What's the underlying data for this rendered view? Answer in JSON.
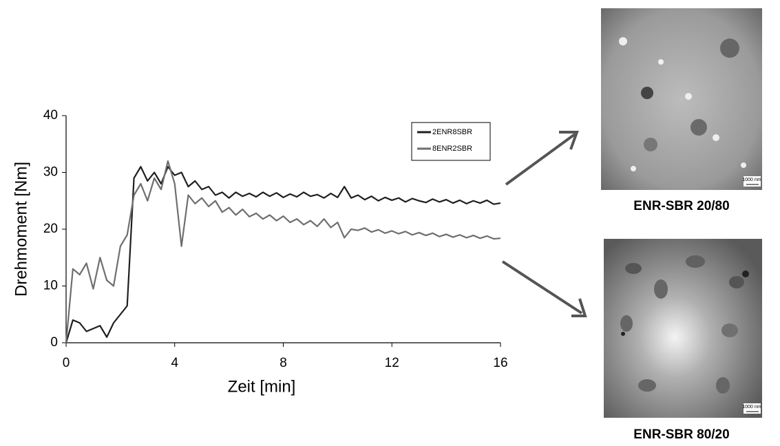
{
  "chart_data": {
    "type": "line",
    "x_label": "Zeit [min]",
    "y_label": "Drehmoment [Nm]",
    "x": [
      0,
      0.25,
      0.5,
      0.75,
      1,
      1.25,
      1.5,
      1.75,
      2,
      2.25,
      2.5,
      2.75,
      3,
      3.25,
      3.5,
      3.75,
      4,
      4.25,
      4.5,
      4.75,
      5,
      5.25,
      5.5,
      5.75,
      6,
      6.25,
      6.5,
      6.75,
      7,
      7.25,
      7.5,
      7.75,
      8,
      8.25,
      8.5,
      8.75,
      9,
      9.25,
      9.5,
      9.75,
      10,
      10.25,
      10.5,
      10.75,
      11,
      11.25,
      11.5,
      11.75,
      12,
      12.25,
      12.5,
      12.75,
      13,
      13.25,
      13.5,
      13.75,
      14,
      14.25,
      14.5,
      14.75,
      15,
      15.25,
      15.5,
      15.75,
      16
    ],
    "series": [
      {
        "name": "2ENR8SBR",
        "color": "#1e1e1e",
        "values": [
          0,
          4,
          3.5,
          2,
          2.5,
          3,
          1,
          3.5,
          5,
          6.5,
          29,
          31,
          28.5,
          30,
          28,
          31,
          29.5,
          30,
          27.5,
          28.5,
          27,
          27.5,
          26,
          26.5,
          25.5,
          26.5,
          25.8,
          26.3,
          25.7,
          26.5,
          25.8,
          26.4,
          25.6,
          26.2,
          25.7,
          26.5,
          25.8,
          26.1,
          25.5,
          26.3,
          25.6,
          27.5,
          25.5,
          26,
          25.2,
          25.8,
          25,
          25.6,
          25.1,
          25.5,
          24.8,
          25.4,
          25,
          24.7,
          25.3,
          24.8,
          25.2,
          24.6,
          25.1,
          24.5,
          25,
          24.6,
          25.1,
          24.4,
          24.6
        ]
      },
      {
        "name": "8ENR2SBR",
        "color": "#6e6e6e",
        "values": [
          0,
          13,
          12,
          14,
          9.5,
          15,
          11,
          10,
          17,
          19,
          26,
          28,
          25,
          29,
          27,
          32,
          28,
          17,
          26,
          24.5,
          25.5,
          24,
          25,
          23,
          23.8,
          22.5,
          23.5,
          22.2,
          22.8,
          21.8,
          22.5,
          21.5,
          22.3,
          21.2,
          21.8,
          20.8,
          21.5,
          20.5,
          21.8,
          20.3,
          21.2,
          18.5,
          20,
          19.8,
          20.2,
          19.5,
          19.9,
          19.3,
          19.7,
          19.2,
          19.6,
          19,
          19.4,
          18.9,
          19.3,
          18.7,
          19.1,
          18.6,
          19,
          18.5,
          18.9,
          18.4,
          18.8,
          18.3,
          18.4
        ]
      }
    ],
    "xlim": [
      0,
      16
    ],
    "xticks": [
      0,
      4,
      8,
      12,
      16
    ],
    "ylim": [
      0,
      40
    ],
    "yticks": [
      0,
      10,
      20,
      30,
      40
    ],
    "grid": false,
    "legend": "upper right"
  },
  "images": [
    {
      "caption": "ENR-SBR 20/80",
      "scale_bar": "1000 nm"
    },
    {
      "caption": "ENR-SBR 80/20",
      "scale_bar": "1000 nm"
    }
  ]
}
